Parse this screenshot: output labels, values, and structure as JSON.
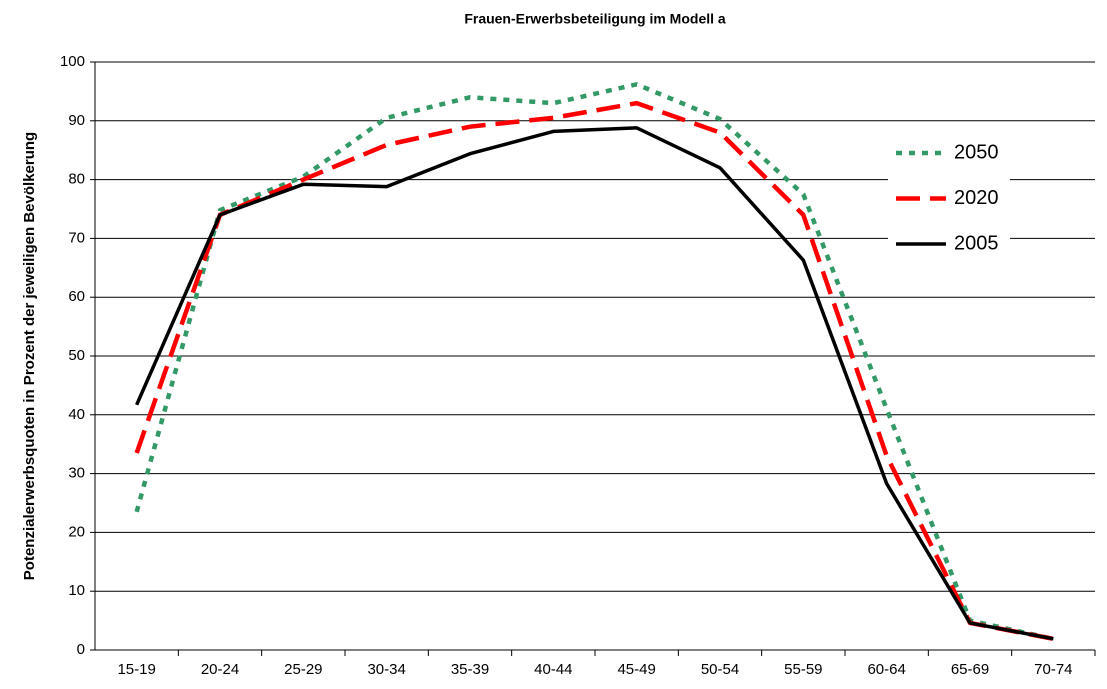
{
  "chart_data": {
    "type": "line",
    "title": "Frauen-Erwerbsbeteiligung im Modell a",
    "y_label": "Potenzialerwerbsquoten in Prozent der jeweiligen Bevölkerung",
    "categories": [
      "15-19",
      "20-24",
      "25-29",
      "30-34",
      "35-39",
      "40-44",
      "45-49",
      "50-54",
      "55-59",
      "60-64",
      "65-69",
      "70-74"
    ],
    "series": [
      {
        "name": "2050",
        "color": "#339966",
        "dash": "dotted",
        "values": [
          23.5,
          74.8,
          80.5,
          90.5,
          94,
          93,
          96.2,
          90.3,
          77.5,
          41,
          5,
          1.9
        ]
      },
      {
        "name": "2020",
        "color": "#ff0000",
        "dash": "dashed",
        "values": [
          33.5,
          74,
          80,
          85.9,
          89,
          90.5,
          93,
          88,
          74,
          33,
          4.6,
          1.9
        ]
      },
      {
        "name": "2005",
        "color": "#000000",
        "dash": "solid",
        "values": [
          41.7,
          74,
          79.2,
          78.8,
          84.4,
          88.2,
          88.8,
          82,
          66.3,
          28.3,
          4.6,
          1.9
        ]
      }
    ],
    "ylim": [
      0,
      100
    ],
    "yticks": [
      0,
      10,
      20,
      30,
      40,
      50,
      60,
      70,
      80,
      90,
      100
    ],
    "grid": true,
    "legend": "right"
  }
}
